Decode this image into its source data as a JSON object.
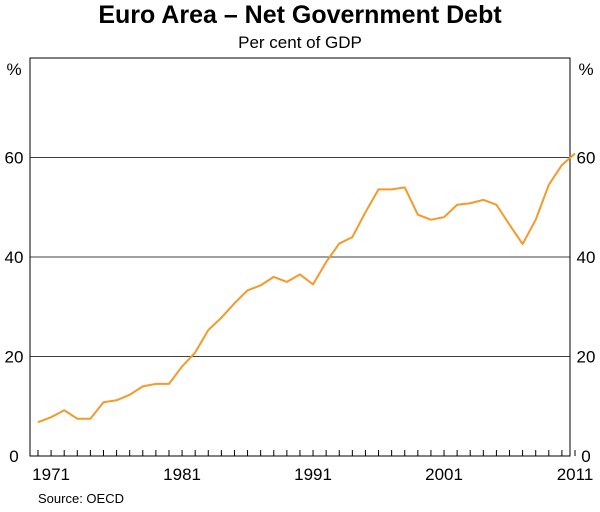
{
  "chart_data": {
    "type": "line",
    "title": "Euro Area – Net Government Debt",
    "subtitle": "Per cent of GDP",
    "ylabel_left": "%",
    "ylabel_right": "%",
    "source": "Source: OECD",
    "ylim": [
      0,
      80
    ],
    "xlim": [
      1970,
      2011
    ],
    "y_ticks": [
      0,
      20,
      40,
      60
    ],
    "x_ticks": [
      1971,
      1981,
      1991,
      2001,
      2011
    ],
    "line_color": "#f39a2b",
    "series": [
      {
        "name": "Net Government Debt",
        "x": [
          1970,
          1971,
          1972,
          1973,
          1974,
          1975,
          1976,
          1977,
          1978,
          1979,
          1980,
          1981,
          1982,
          1983,
          1984,
          1985,
          1986,
          1987,
          1988,
          1989,
          1990,
          1991,
          1992,
          1993,
          1994,
          1995,
          1996,
          1997,
          1998,
          1999,
          2000,
          2001,
          2002,
          2003,
          2004,
          2005,
          2006,
          2007,
          2008,
          2009,
          2010,
          2011
        ],
        "values": [
          6.8,
          7.8,
          9.2,
          7.5,
          7.5,
          10.8,
          11.2,
          12.3,
          14.0,
          14.5,
          14.5,
          18.0,
          20.8,
          25.3,
          27.8,
          30.7,
          33.3,
          34.3,
          36.0,
          35.0,
          36.5,
          34.5,
          39.0,
          42.7,
          44.0,
          49.0,
          53.6,
          53.6,
          54.0,
          48.5,
          47.5,
          48.0,
          50.5,
          50.8,
          51.5,
          50.5,
          46.5,
          42.6,
          47.5,
          54.5,
          58.5,
          60.8
        ]
      }
    ]
  }
}
